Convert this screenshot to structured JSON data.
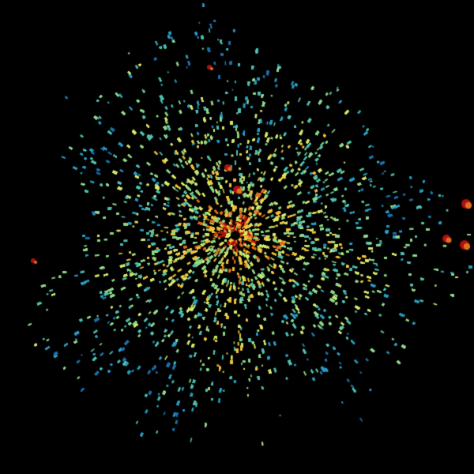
{
  "image": {
    "kind": "radar-ppi-scan",
    "background_color": "#000000",
    "colormap": [
      "#1f6fa8",
      "#2a9cc0",
      "#4fc0b0",
      "#8fd98a",
      "#d8e86a",
      "#f2c23a",
      "#e0701e",
      "#b01010"
    ],
    "center_marker_color": "#000000"
  }
}
